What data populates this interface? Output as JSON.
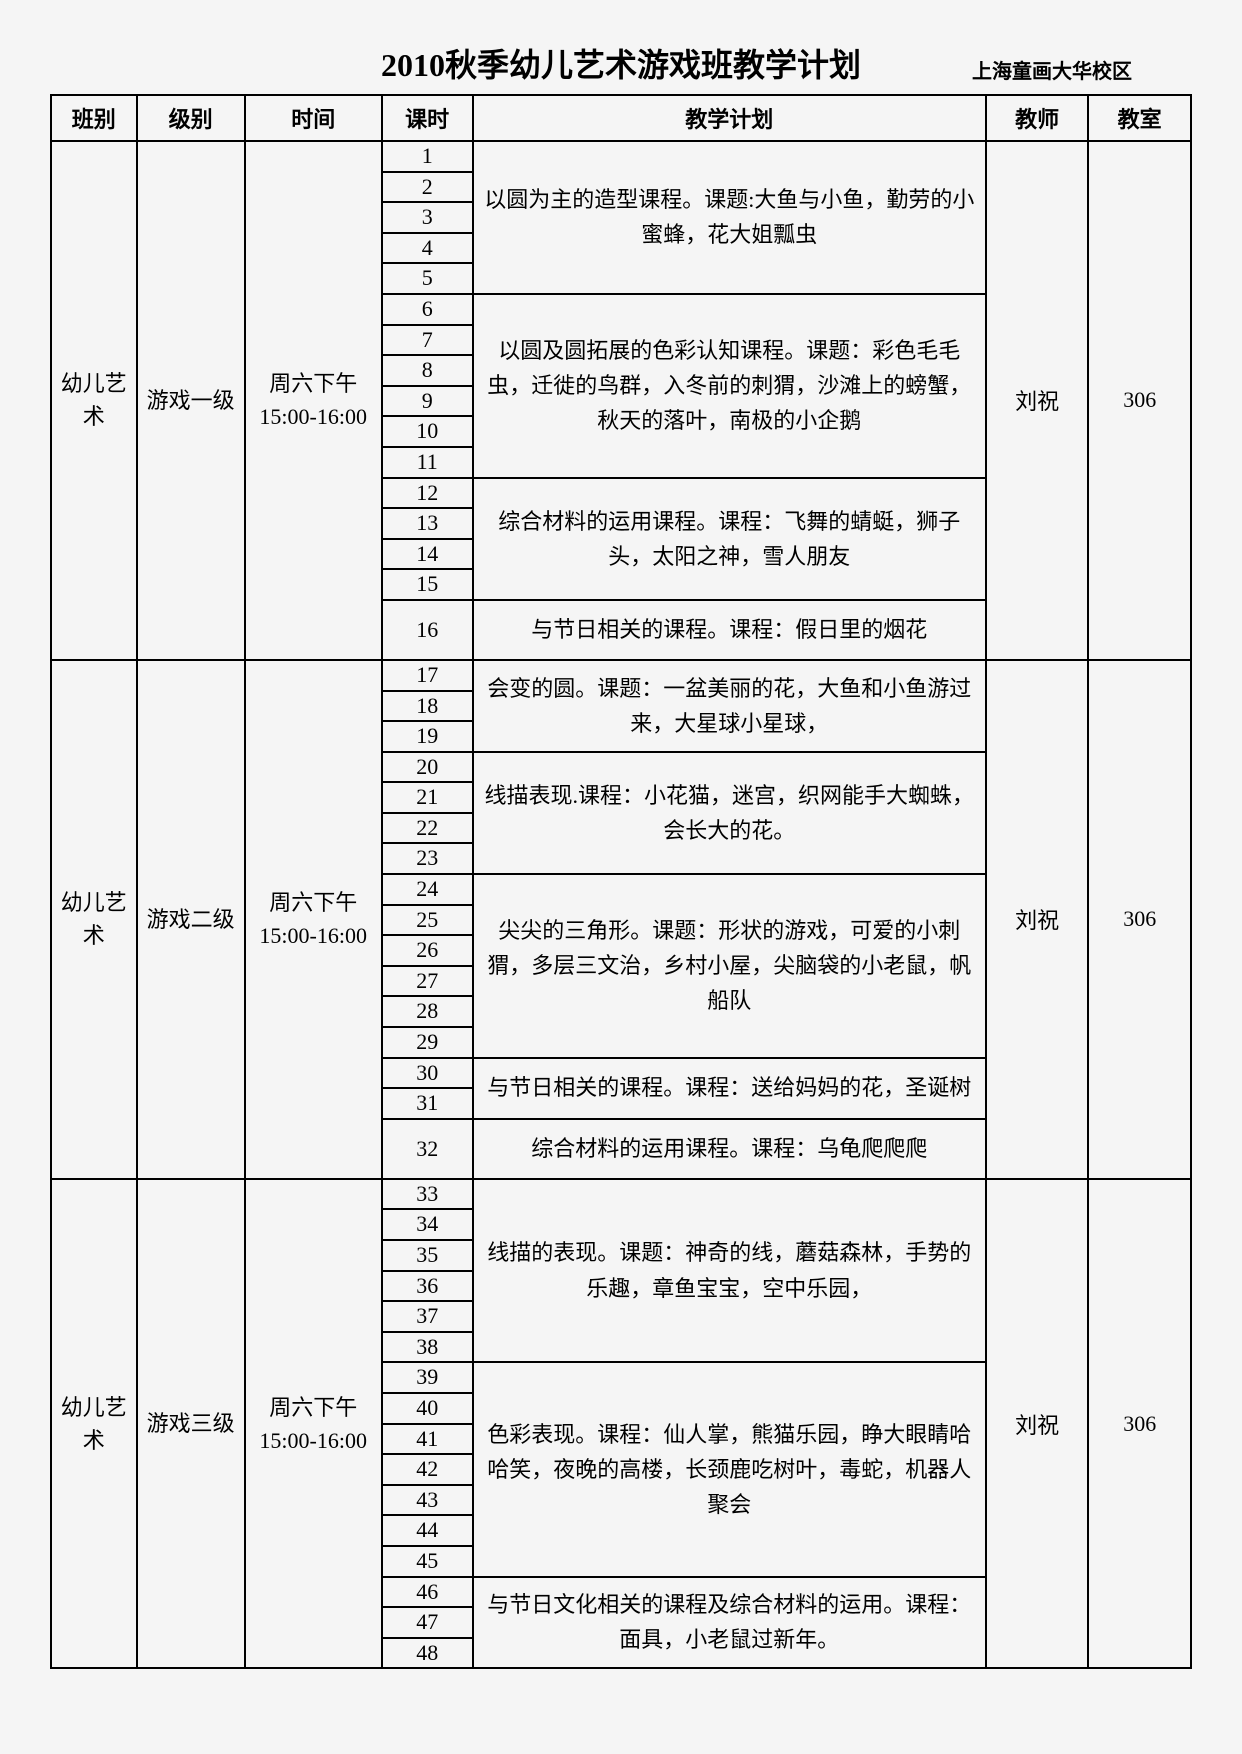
{
  "title": "2010秋季幼儿艺术游戏班教学计划",
  "subtitle": "上海童画大华校区",
  "headers": {
    "class": "班别",
    "level": "级别",
    "time": "时间",
    "hour": "课时",
    "plan": "教学计划",
    "teacher": "教师",
    "room": "教室"
  },
  "common": {
    "class_name": "幼儿艺术",
    "time": "周六下午15:00-16:00",
    "teacher": "刘祝",
    "room": "306"
  },
  "sections": [
    {
      "level": "游戏一级",
      "blocks": [
        {
          "lessons": [
            1,
            2,
            3,
            4,
            5
          ],
          "plan": "以圆为主的造型课程。课题:大鱼与小鱼，勤劳的小蜜蜂，花大姐瓢虫"
        },
        {
          "lessons": [
            6,
            7,
            8,
            9,
            10,
            11
          ],
          "plan": "以圆及圆拓展的色彩认知课程。课题：彩色毛毛虫，迁徙的鸟群，入冬前的刺猬，沙滩上的螃蟹，秋天的落叶，南极的小企鹅"
        },
        {
          "lessons": [
            12,
            13,
            14,
            15
          ],
          "plan": "综合材料的运用课程。课程：飞舞的蜻蜓，狮子头，太阳之神，雪人朋友"
        },
        {
          "lessons": [
            16
          ],
          "plan": "与节日相关的课程。课程：假日里的烟花",
          "tall": true
        }
      ]
    },
    {
      "level": "游戏二级",
      "blocks": [
        {
          "lessons": [
            17,
            18,
            19
          ],
          "plan": "会变的圆。课题：一盆美丽的花，大鱼和小鱼游过来，大星球小星球，"
        },
        {
          "lessons": [
            20,
            21,
            22,
            23
          ],
          "plan": "线描表现.课程：小花猫，迷宫，织网能手大蜘蛛，会长大的花。"
        },
        {
          "lessons": [
            24,
            25,
            26,
            27,
            28,
            29
          ],
          "plan": "尖尖的三角形。课题：形状的游戏，可爱的小刺猬，多层三文治，乡村小屋，尖脑袋的小老鼠，帆船队"
        },
        {
          "lessons": [
            30,
            31
          ],
          "plan": "与节日相关的课程。课程：送给妈妈的花，圣诞树",
          "clipped": true
        },
        {
          "lessons": [
            32
          ],
          "plan": "综合材料的运用课程。课程：乌龟爬爬爬",
          "tall": true
        }
      ]
    },
    {
      "level": "游戏三级",
      "blocks": [
        {
          "lessons": [
            33,
            34,
            35,
            36,
            37,
            38
          ],
          "plan": "线描的表现。课题：神奇的线，蘑菇森林，手势的乐趣，章鱼宝宝，空中乐园，"
        },
        {
          "lessons": [
            39,
            40,
            41,
            42,
            43,
            44,
            45
          ],
          "plan": "色彩表现。课程：仙人掌，熊猫乐园，睁大眼睛哈哈笑，夜晚的高楼，长颈鹿吃树叶，毒蛇，机器人聚会"
        },
        {
          "lessons": [
            46,
            47,
            48
          ],
          "plan": "与节日文化相关的课程及综合材料的运用。课程：面具，小老鼠过新年。"
        }
      ]
    }
  ],
  "styles": {
    "background_color": "#f5f5f5",
    "border_color": "#000000",
    "text_color": "#000000",
    "title_fontsize": 32,
    "body_fontsize": 22,
    "subtitle_fontsize": 20
  }
}
